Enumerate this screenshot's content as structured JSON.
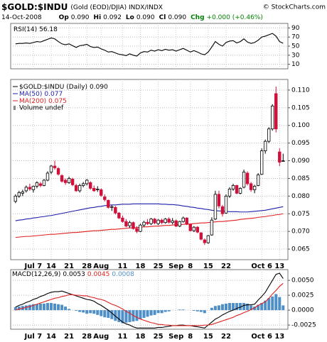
{
  "header": {
    "symbol": "$GOLD:$INDU",
    "description": "(Gold (EOD)/DJIA) INDX/INDX",
    "copyright": "© StockCharts.com",
    "date": "14-Oct-2008",
    "quote": [
      [
        "Op",
        "0.090"
      ],
      [
        "Hi",
        "0.092"
      ],
      [
        "Lo",
        "0.090"
      ],
      [
        "Cl",
        "0.090"
      ],
      [
        "Chg",
        "+0.000 (+0.46%)"
      ]
    ]
  },
  "chart_data": [
    {
      "type": "line",
      "ylim": [
        0,
        100
      ],
      "yticks": [
        10,
        30,
        50,
        70,
        90
      ],
      "grid": true,
      "series": [
        {
          "name": "RSI(14)",
          "color": "#000000",
          "values": [
            55,
            56,
            56,
            57,
            56,
            58,
            60,
            59,
            62,
            65,
            68,
            66,
            60,
            55,
            53,
            55,
            51,
            47,
            51,
            52,
            54,
            49,
            47,
            48,
            44,
            41,
            37,
            38,
            35,
            32,
            31,
            29,
            33,
            30,
            28,
            35,
            38,
            37,
            41,
            39,
            42,
            40,
            43,
            41,
            42,
            39,
            42,
            45,
            41,
            37,
            40,
            37,
            33,
            31,
            37,
            48,
            60,
            54,
            50,
            58,
            61,
            62,
            57,
            60,
            66,
            59,
            56,
            58,
            63,
            70,
            72,
            75,
            78,
            72,
            60,
            56.18
          ]
        }
      ]
    },
    {
      "type": "candlestick",
      "name": "$GOLD:$INDU (Daily)",
      "last_label": "0.090",
      "volume_label": "Volume undef",
      "ylim": [
        0.062,
        0.113
      ],
      "grid": true,
      "yticks": [
        0.065,
        {
          "value": 0.07,
          "label": "0.070"
        },
        0.075,
        {
          "value": 0.08,
          "label": "0.080"
        },
        0.085,
        {
          "value": 0.09,
          "label": "0.090"
        },
        0.095,
        {
          "value": 0.1,
          "label": "0.100"
        },
        0.105,
        {
          "value": 0.11,
          "label": "0.110"
        }
      ],
      "categories": [
        null,
        null,
        null,
        null,
        null,
        "Jul 7",
        null,
        null,
        null,
        null,
        "14",
        null,
        null,
        null,
        null,
        "21",
        null,
        null,
        null,
        null,
        "28",
        null,
        null,
        null,
        "Aug",
        null,
        null,
        null,
        null,
        null,
        "11",
        null,
        null,
        null,
        null,
        "18",
        null,
        null,
        null,
        null,
        "25",
        null,
        null,
        null,
        null,
        "Sep",
        null,
        null,
        null,
        "8",
        null,
        null,
        null,
        null,
        "15",
        null,
        null,
        null,
        null,
        "22",
        null,
        null,
        null,
        null,
        null,
        null,
        null,
        null,
        null,
        "Oct 6",
        null,
        null,
        null,
        null,
        "13",
        null
      ],
      "open": [
        0.0785,
        0.08,
        0.0808,
        0.0815,
        0.0825,
        0.0818,
        0.0828,
        0.0835,
        0.083,
        0.0845,
        0.0868,
        0.0885,
        0.0878,
        0.0858,
        0.0845,
        0.0838,
        0.0848,
        0.083,
        0.0815,
        0.083,
        0.0835,
        0.0838,
        0.0822,
        0.0818,
        0.0818,
        0.0798,
        0.0788,
        0.0768,
        0.0768,
        0.0752,
        0.0738,
        0.0728,
        0.0716,
        0.0725,
        0.0708,
        0.07,
        0.0718,
        0.0726,
        0.0722,
        0.0735,
        0.0722,
        0.0732,
        0.0725,
        0.0735,
        0.0725,
        0.073,
        0.0715,
        0.0728,
        0.0738,
        0.072,
        0.0702,
        0.0712,
        0.0696,
        0.0676,
        0.0668,
        0.069,
        0.0735,
        0.0805,
        0.077,
        0.0752,
        0.08,
        0.082,
        0.083,
        0.0808,
        0.0825,
        0.0865,
        0.0835,
        0.0818,
        0.083,
        0.0862,
        0.0928,
        0.0955,
        0.099,
        0.109,
        0.0925,
        0.09
      ],
      "high": [
        0.0805,
        0.0815,
        0.0818,
        0.083,
        0.0835,
        0.083,
        0.0842,
        0.084,
        0.0848,
        0.087,
        0.0888,
        0.09,
        0.0882,
        0.0862,
        0.085,
        0.0855,
        0.0852,
        0.0835,
        0.0835,
        0.084,
        0.0848,
        0.0842,
        0.083,
        0.0828,
        0.0822,
        0.0805,
        0.079,
        0.0775,
        0.0772,
        0.0755,
        0.0745,
        0.0735,
        0.073,
        0.0728,
        0.0715,
        0.0722,
        0.073,
        0.0735,
        0.0738,
        0.0738,
        0.0735,
        0.0736,
        0.0738,
        0.074,
        0.0738,
        0.0734,
        0.073,
        0.0742,
        0.074,
        0.0722,
        0.0715,
        0.0715,
        0.0698,
        0.068,
        0.069,
        0.074,
        0.0815,
        0.0815,
        0.0775,
        0.0805,
        0.0825,
        0.0835,
        0.0832,
        0.0825,
        0.0875,
        0.087,
        0.084,
        0.0832,
        0.0865,
        0.0935,
        0.096,
        0.0995,
        0.106,
        0.111,
        0.0935,
        0.092
      ],
      "low": [
        0.078,
        0.0795,
        0.08,
        0.081,
        0.0815,
        0.081,
        0.0822,
        0.0825,
        0.0828,
        0.0842,
        0.0862,
        0.0875,
        0.0858,
        0.0838,
        0.0832,
        0.0835,
        0.0828,
        0.0812,
        0.081,
        0.0825,
        0.083,
        0.0818,
        0.0812,
        0.0812,
        0.0798,
        0.0785,
        0.0765,
        0.0758,
        0.0748,
        0.0735,
        0.0725,
        0.0712,
        0.071,
        0.0705,
        0.0695,
        0.0698,
        0.0712,
        0.0718,
        0.0718,
        0.072,
        0.0718,
        0.072,
        0.0722,
        0.0722,
        0.072,
        0.0712,
        0.0712,
        0.0725,
        0.0718,
        0.07,
        0.0698,
        0.0695,
        0.0675,
        0.0662,
        0.0665,
        0.0688,
        0.0732,
        0.0765,
        0.0742,
        0.075,
        0.0795,
        0.0815,
        0.0805,
        0.0805,
        0.0822,
        0.083,
        0.0812,
        0.0808,
        0.0828,
        0.086,
        0.092,
        0.095,
        0.0985,
        0.098,
        0.0885,
        0.09
      ],
      "close": [
        0.08,
        0.081,
        0.0812,
        0.0825,
        0.082,
        0.0828,
        0.0838,
        0.083,
        0.0845,
        0.0865,
        0.0885,
        0.088,
        0.0862,
        0.0842,
        0.0838,
        0.085,
        0.0832,
        0.0815,
        0.083,
        0.0835,
        0.0845,
        0.0822,
        0.0815,
        0.082,
        0.0802,
        0.079,
        0.0768,
        0.077,
        0.0752,
        0.0738,
        0.0728,
        0.0715,
        0.0725,
        0.0708,
        0.07,
        0.0718,
        0.0726,
        0.0722,
        0.0735,
        0.0724,
        0.0732,
        0.0725,
        0.0735,
        0.0726,
        0.073,
        0.0715,
        0.0728,
        0.0738,
        0.072,
        0.0702,
        0.0712,
        0.0698,
        0.0678,
        0.0668,
        0.0688,
        0.0732,
        0.0805,
        0.0772,
        0.075,
        0.08,
        0.082,
        0.083,
        0.0808,
        0.0822,
        0.0868,
        0.0835,
        0.0818,
        0.0828,
        0.086,
        0.0928,
        0.0955,
        0.099,
        0.1055,
        0.099,
        0.0896,
        0.09
      ],
      "series": [
        {
          "name": "MA(50)",
          "last_label": "0.077",
          "color": "#1f1fa8",
          "values": [
            0.073,
            0.0732,
            0.0733,
            0.0735,
            0.0736,
            0.0738,
            0.0739,
            0.0741,
            0.0742,
            0.0744,
            0.0745,
            0.0747,
            0.0749,
            0.0751,
            0.0753,
            0.0755,
            0.0757,
            0.0759,
            0.0761,
            0.0763,
            0.0765,
            0.0767,
            0.0768,
            0.077,
            0.0771,
            0.0773,
            0.0774,
            0.0775,
            0.0775,
            0.0776,
            0.0777,
            0.0777,
            0.0777,
            0.0778,
            0.0778,
            0.0778,
            0.0778,
            0.0778,
            0.0778,
            0.0778,
            0.0778,
            0.0777,
            0.0777,
            0.0776,
            0.0776,
            0.0775,
            0.0774,
            0.0772,
            0.0771,
            0.0769,
            0.0768,
            0.0766,
            0.0765,
            0.0763,
            0.0762,
            0.076,
            0.0759,
            0.0758,
            0.0758,
            0.0757,
            0.0756,
            0.0756,
            0.0756,
            0.0755,
            0.0755,
            0.0755,
            0.0756,
            0.0757,
            0.0758,
            0.0759,
            0.076,
            0.0762,
            0.0764,
            0.0766,
            0.0768,
            0.077
          ]
        },
        {
          "name": "MA(200)",
          "last_label": "0.075",
          "color": "#e02020",
          "values": [
            0.0683,
            0.0684,
            0.0685,
            0.0686,
            0.0686,
            0.0687,
            0.0688,
            0.0689,
            0.069,
            0.0691,
            0.0692,
            0.0692,
            0.0693,
            0.0694,
            0.0695,
            0.0696,
            0.0697,
            0.0697,
            0.0698,
            0.0699,
            0.07,
            0.0701,
            0.0702,
            0.0702,
            0.0703,
            0.0704,
            0.0705,
            0.0706,
            0.0706,
            0.0707,
            0.0708,
            0.0709,
            0.071,
            0.071,
            0.0711,
            0.0712,
            0.0713,
            0.0713,
            0.0714,
            0.0715,
            0.0715,
            0.0716,
            0.0717,
            0.0717,
            0.0718,
            0.0719,
            0.0719,
            0.072,
            0.0721,
            0.0721,
            0.0722,
            0.0723,
            0.0724,
            0.0724,
            0.0725,
            0.0726,
            0.0727,
            0.0728,
            0.0728,
            0.0729,
            0.073,
            0.0731,
            0.0732,
            0.0734,
            0.0735,
            0.0736,
            0.0737,
            0.0738,
            0.074,
            0.0741,
            0.0742,
            0.0744,
            0.0745,
            0.0747,
            0.0748,
            0.075
          ]
        }
      ]
    },
    {
      "type": "macd",
      "ylim": [
        -0.0032,
        0.0068
      ],
      "grid": true,
      "yticks": [
        -0.0025,
        {
          "value": 0,
          "label": "0.0000"
        },
        0.0025,
        {
          "value": 0.005,
          "label": "0.0050"
        }
      ],
      "series": [
        {
          "kind": "histogram",
          "color": "#4f8fc8",
          "values": [
            0.0005,
            0.0006,
            0.0007,
            0.0008,
            0.0009,
            0.001,
            0.001,
            0.0011,
            0.0011,
            0.0012,
            0.0012,
            0.0011,
            0.001,
            0.0009,
            0.0006,
            0.0002,
            0,
            -0.0001,
            -0.0003,
            -0.0004,
            -0.0006,
            -0.0005,
            -0.0006,
            -0.0008,
            -0.001,
            -0.0012,
            -0.0013,
            -0.0015,
            -0.0018,
            -0.002,
            -0.0022,
            -0.0021,
            -0.002,
            -0.0019,
            -0.0018,
            -0.0015,
            -0.0013,
            -0.0011,
            -0.0009,
            -0.0008,
            -0.0005,
            -0.0005,
            -0.0003,
            -0.0002,
            0,
            0,
            0.0001,
            0.0001,
            0,
            0,
            -0.0001,
            -0.0002,
            -0.0003,
            -0.0005,
            0,
            0.0004,
            0.0007,
            0.0008,
            0.001,
            0.0011,
            0.0012,
            0.0012,
            0.0012,
            0.0012,
            0.0012,
            0.0011,
            0.0008,
            0.0006,
            0.0009,
            0.0012,
            0.0016,
            0.002,
            0.0023,
            0.0027,
            0.0022,
            0.0008
          ]
        },
        {
          "name": "MACD(12,26,9)",
          "color": "#000000",
          "values": [
            0.0005,
            0.0008,
            0.001,
            0.0013,
            0.0015,
            0.0018,
            0.002,
            0.0023,
            0.0025,
            0.0028,
            0.003,
            0.0031,
            0.0031,
            0.0032,
            0.003,
            0.0028,
            0.0026,
            0.0024,
            0.0022,
            0.002,
            0.0018,
            0.0017,
            0.0015,
            0.0011,
            0.0008,
            0.0004,
            0,
            -0.0005,
            -0.001,
            -0.0015,
            -0.002,
            -0.0023,
            -0.0025,
            -0.0028,
            -0.003,
            -0.003,
            -0.003,
            -0.003,
            -0.003,
            -0.003,
            -0.0029,
            -0.0029,
            -0.0028,
            -0.0027,
            -0.0026,
            -0.0026,
            -0.0025,
            -0.0025,
            -0.0026,
            -0.0026,
            -0.0027,
            -0.0028,
            -0.0029,
            -0.003,
            -0.0025,
            -0.002,
            -0.0015,
            -0.0012,
            -0.0008,
            -0.0005,
            -0.0002,
            0,
            0.0003,
            0.0005,
            0.0008,
            0.0009,
            0.0009,
            0.001,
            0.0017,
            0.0023,
            0.003,
            0.004,
            0.005,
            0.006,
            0.0062,
            0.0053
          ]
        },
        {
          "color": "#e02020",
          "values": [
            0,
            0.0002,
            0.0003,
            0.0005,
            0.0006,
            0.0008,
            0.001,
            0.0012,
            0.0014,
            0.0016,
            0.0018,
            0.002,
            0.0021,
            0.0023,
            0.0024,
            0.0026,
            0.0026,
            0.0025,
            0.0025,
            0.0024,
            0.0024,
            0.0022,
            0.0021,
            0.0019,
            0.0018,
            0.0016,
            0.0013,
            0.001,
            0.0008,
            0.0005,
            0.0002,
            -0.0002,
            -0.0005,
            -0.0009,
            -0.0012,
            -0.0015,
            -0.0017,
            -0.0019,
            -0.0021,
            -0.0022,
            -0.0024,
            -0.0024,
            -0.0025,
            -0.0025,
            -0.0026,
            -0.0026,
            -0.0026,
            -0.0026,
            -0.0026,
            -0.0026,
            -0.0026,
            -0.0026,
            -0.0026,
            -0.0025,
            -0.0025,
            -0.0024,
            -0.0022,
            -0.002,
            -0.0018,
            -0.0016,
            -0.0014,
            -0.0012,
            -0.0009,
            -0.0007,
            -0.0004,
            -0.0002,
            0.0001,
            0.0004,
            0.0008,
            0.0011,
            0.0014,
            0.002,
            0.0027,
            0.0033,
            0.004,
            0.0045
          ]
        }
      ]
    }
  ]
}
